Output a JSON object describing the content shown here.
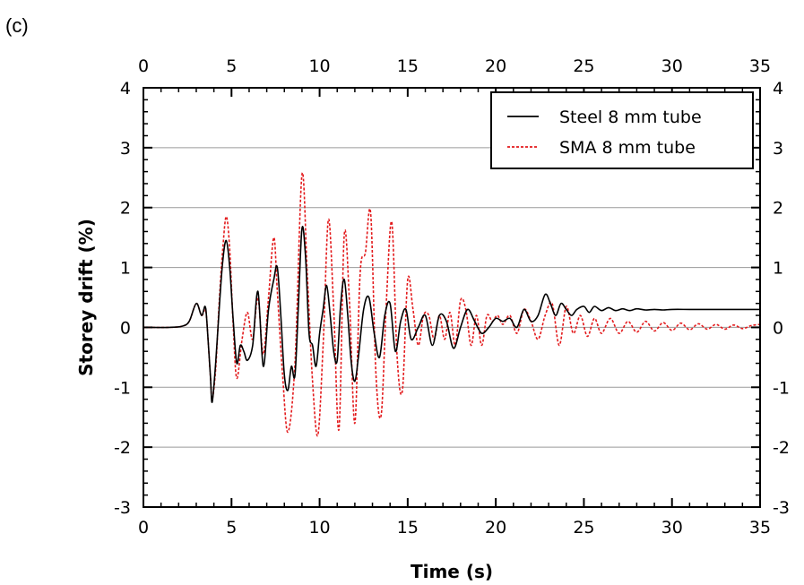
{
  "panel_label": "(c)",
  "chart_data": {
    "type": "line",
    "title": "",
    "xlabel": "Time (s)",
    "ylabel": "Storey drift (%)",
    "xlim": [
      0,
      35
    ],
    "ylim": [
      -3,
      4
    ],
    "x_ticks": [
      0,
      5,
      10,
      15,
      20,
      25,
      30,
      35
    ],
    "y_ticks": [
      -3,
      -2,
      -1,
      0,
      1,
      2,
      3,
      4
    ],
    "x_tick_labels": [
      "0",
      "5",
      "10",
      "15",
      "20",
      "25",
      "30",
      "35"
    ],
    "y_tick_labels": [
      "-3",
      "-2",
      "-1",
      "0",
      "1",
      "2",
      "3",
      "4"
    ],
    "grid": "horizontal",
    "legend_position": "top-right",
    "series": [
      {
        "name": "Steel 8 mm tube",
        "color": "#000000",
        "style": "solid",
        "x": [
          0,
          1.5,
          2.2,
          2.6,
          3.0,
          3.3,
          3.5,
          3.6,
          3.8,
          3.9,
          4.1,
          4.3,
          4.5,
          4.7,
          4.9,
          5.1,
          5.3,
          5.5,
          5.7,
          5.9,
          6.2,
          6.5,
          6.8,
          7.1,
          7.4,
          7.6,
          7.8,
          8.0,
          8.2,
          8.4,
          8.6,
          8.8,
          9.0,
          9.2,
          9.4,
          9.6,
          9.8,
          10.0,
          10.2,
          10.4,
          10.6,
          10.8,
          11.0,
          11.2,
          11.4,
          11.6,
          11.8,
          12.0,
          12.2,
          12.5,
          12.8,
          13.1,
          13.4,
          13.7,
          14.0,
          14.3,
          14.6,
          14.9,
          15.2,
          15.6,
          16.0,
          16.4,
          16.8,
          17.2,
          17.6,
          18.0,
          18.4,
          18.8,
          19.2,
          19.6,
          20.0,
          20.4,
          20.8,
          21.2,
          21.6,
          22.0,
          22.4,
          22.8,
          23.1,
          23.4,
          23.7,
          24.0,
          24.3,
          24.6,
          25.0,
          25.3,
          25.6,
          26.0,
          26.4,
          26.8,
          27.2,
          27.6,
          28.0,
          28.5,
          29.0,
          29.5,
          30,
          31,
          32,
          33,
          34,
          35
        ],
        "y": [
          0,
          0,
          0.02,
          0.1,
          0.4,
          0.2,
          0.35,
          0.1,
          -0.8,
          -1.25,
          -0.6,
          0.3,
          1.1,
          1.45,
          1.0,
          0.1,
          -0.6,
          -0.3,
          -0.4,
          -0.55,
          -0.3,
          0.6,
          -0.65,
          0.3,
          0.8,
          1.0,
          0.2,
          -0.8,
          -1.05,
          -0.65,
          -0.8,
          0.4,
          1.65,
          1.2,
          -0.1,
          -0.3,
          -0.65,
          -0.1,
          0.3,
          0.7,
          0.2,
          -0.4,
          -0.55,
          0.4,
          0.8,
          0.2,
          -0.6,
          -0.9,
          -0.5,
          0.3,
          0.5,
          -0.1,
          -0.5,
          0.2,
          0.4,
          -0.4,
          0.1,
          0.3,
          -0.2,
          0.0,
          0.2,
          -0.3,
          0.2,
          0.1,
          -0.35,
          0.0,
          0.3,
          0.1,
          -0.1,
          0.0,
          0.15,
          0.1,
          0.15,
          0.0,
          0.3,
          0.1,
          0.2,
          0.55,
          0.4,
          0.2,
          0.4,
          0.3,
          0.2,
          0.3,
          0.35,
          0.25,
          0.35,
          0.28,
          0.33,
          0.28,
          0.31,
          0.28,
          0.31,
          0.29,
          0.3,
          0.29,
          0.3,
          0.3,
          0.3,
          0.3,
          0.3,
          0.3
        ]
      },
      {
        "name": "SMA 8 mm tube",
        "color": "#e31a1c",
        "style": "dotted",
        "x": [
          0,
          1.5,
          2.2,
          2.6,
          3.0,
          3.3,
          3.5,
          3.6,
          3.8,
          3.9,
          4.1,
          4.3,
          4.5,
          4.7,
          4.9,
          5.1,
          5.3,
          5.6,
          5.9,
          6.2,
          6.5,
          6.8,
          7.1,
          7.4,
          7.6,
          7.9,
          8.2,
          8.6,
          9.0,
          9.3,
          9.6,
          9.9,
          10.2,
          10.5,
          10.8,
          11.1,
          11.4,
          11.7,
          12.0,
          12.3,
          12.6,
          12.9,
          13.2,
          13.5,
          13.8,
          14.1,
          14.4,
          14.7,
          15.0,
          15.3,
          15.6,
          15.9,
          16.2,
          16.5,
          16.8,
          17.1,
          17.4,
          17.7,
          18.0,
          18.3,
          18.6,
          18.9,
          19.2,
          19.5,
          19.8,
          20.1,
          20.4,
          20.8,
          21.2,
          21.6,
          22.0,
          22.4,
          22.8,
          23.2,
          23.6,
          24.0,
          24.4,
          24.8,
          25.2,
          25.6,
          26.0,
          26.5,
          27.0,
          27.5,
          28.0,
          28.5,
          29.0,
          29.5,
          30.0,
          30.5,
          31.0,
          31.5,
          32.0,
          32.5,
          33.0,
          33.5,
          34.0,
          34.5,
          35.0
        ],
        "y": [
          0,
          0,
          0.02,
          0.1,
          0.4,
          0.2,
          0.3,
          0.1,
          -0.8,
          -1.2,
          -0.7,
          0.4,
          1.3,
          1.85,
          1.3,
          0.0,
          -0.85,
          -0.2,
          0.25,
          -0.2,
          0.5,
          -0.45,
          0.5,
          1.5,
          0.6,
          -0.8,
          -1.75,
          -0.6,
          2.55,
          0.9,
          -0.9,
          -1.8,
          -0.3,
          1.8,
          0.3,
          -1.7,
          1.55,
          0.4,
          -1.6,
          0.9,
          1.25,
          1.9,
          -0.8,
          -1.45,
          0.5,
          1.75,
          -0.5,
          -1.05,
          0.8,
          0.3,
          -0.3,
          0.2,
          0.2,
          -0.2,
          0.2,
          -0.2,
          0.25,
          -0.3,
          0.45,
          0.3,
          -0.3,
          0.2,
          -0.3,
          0.2,
          0.1,
          0.2,
          0.05,
          0.2,
          -0.1,
          0.3,
          0.1,
          -0.2,
          0.2,
          0.4,
          -0.3,
          0.35,
          -0.1,
          0.2,
          -0.15,
          0.15,
          -0.1,
          0.15,
          -0.1,
          0.1,
          -0.08,
          0.1,
          -0.06,
          0.08,
          -0.05,
          0.07,
          -0.04,
          0.06,
          -0.03,
          0.05,
          -0.03,
          0.04,
          -0.02,
          0.03,
          0.05
        ]
      }
    ]
  }
}
